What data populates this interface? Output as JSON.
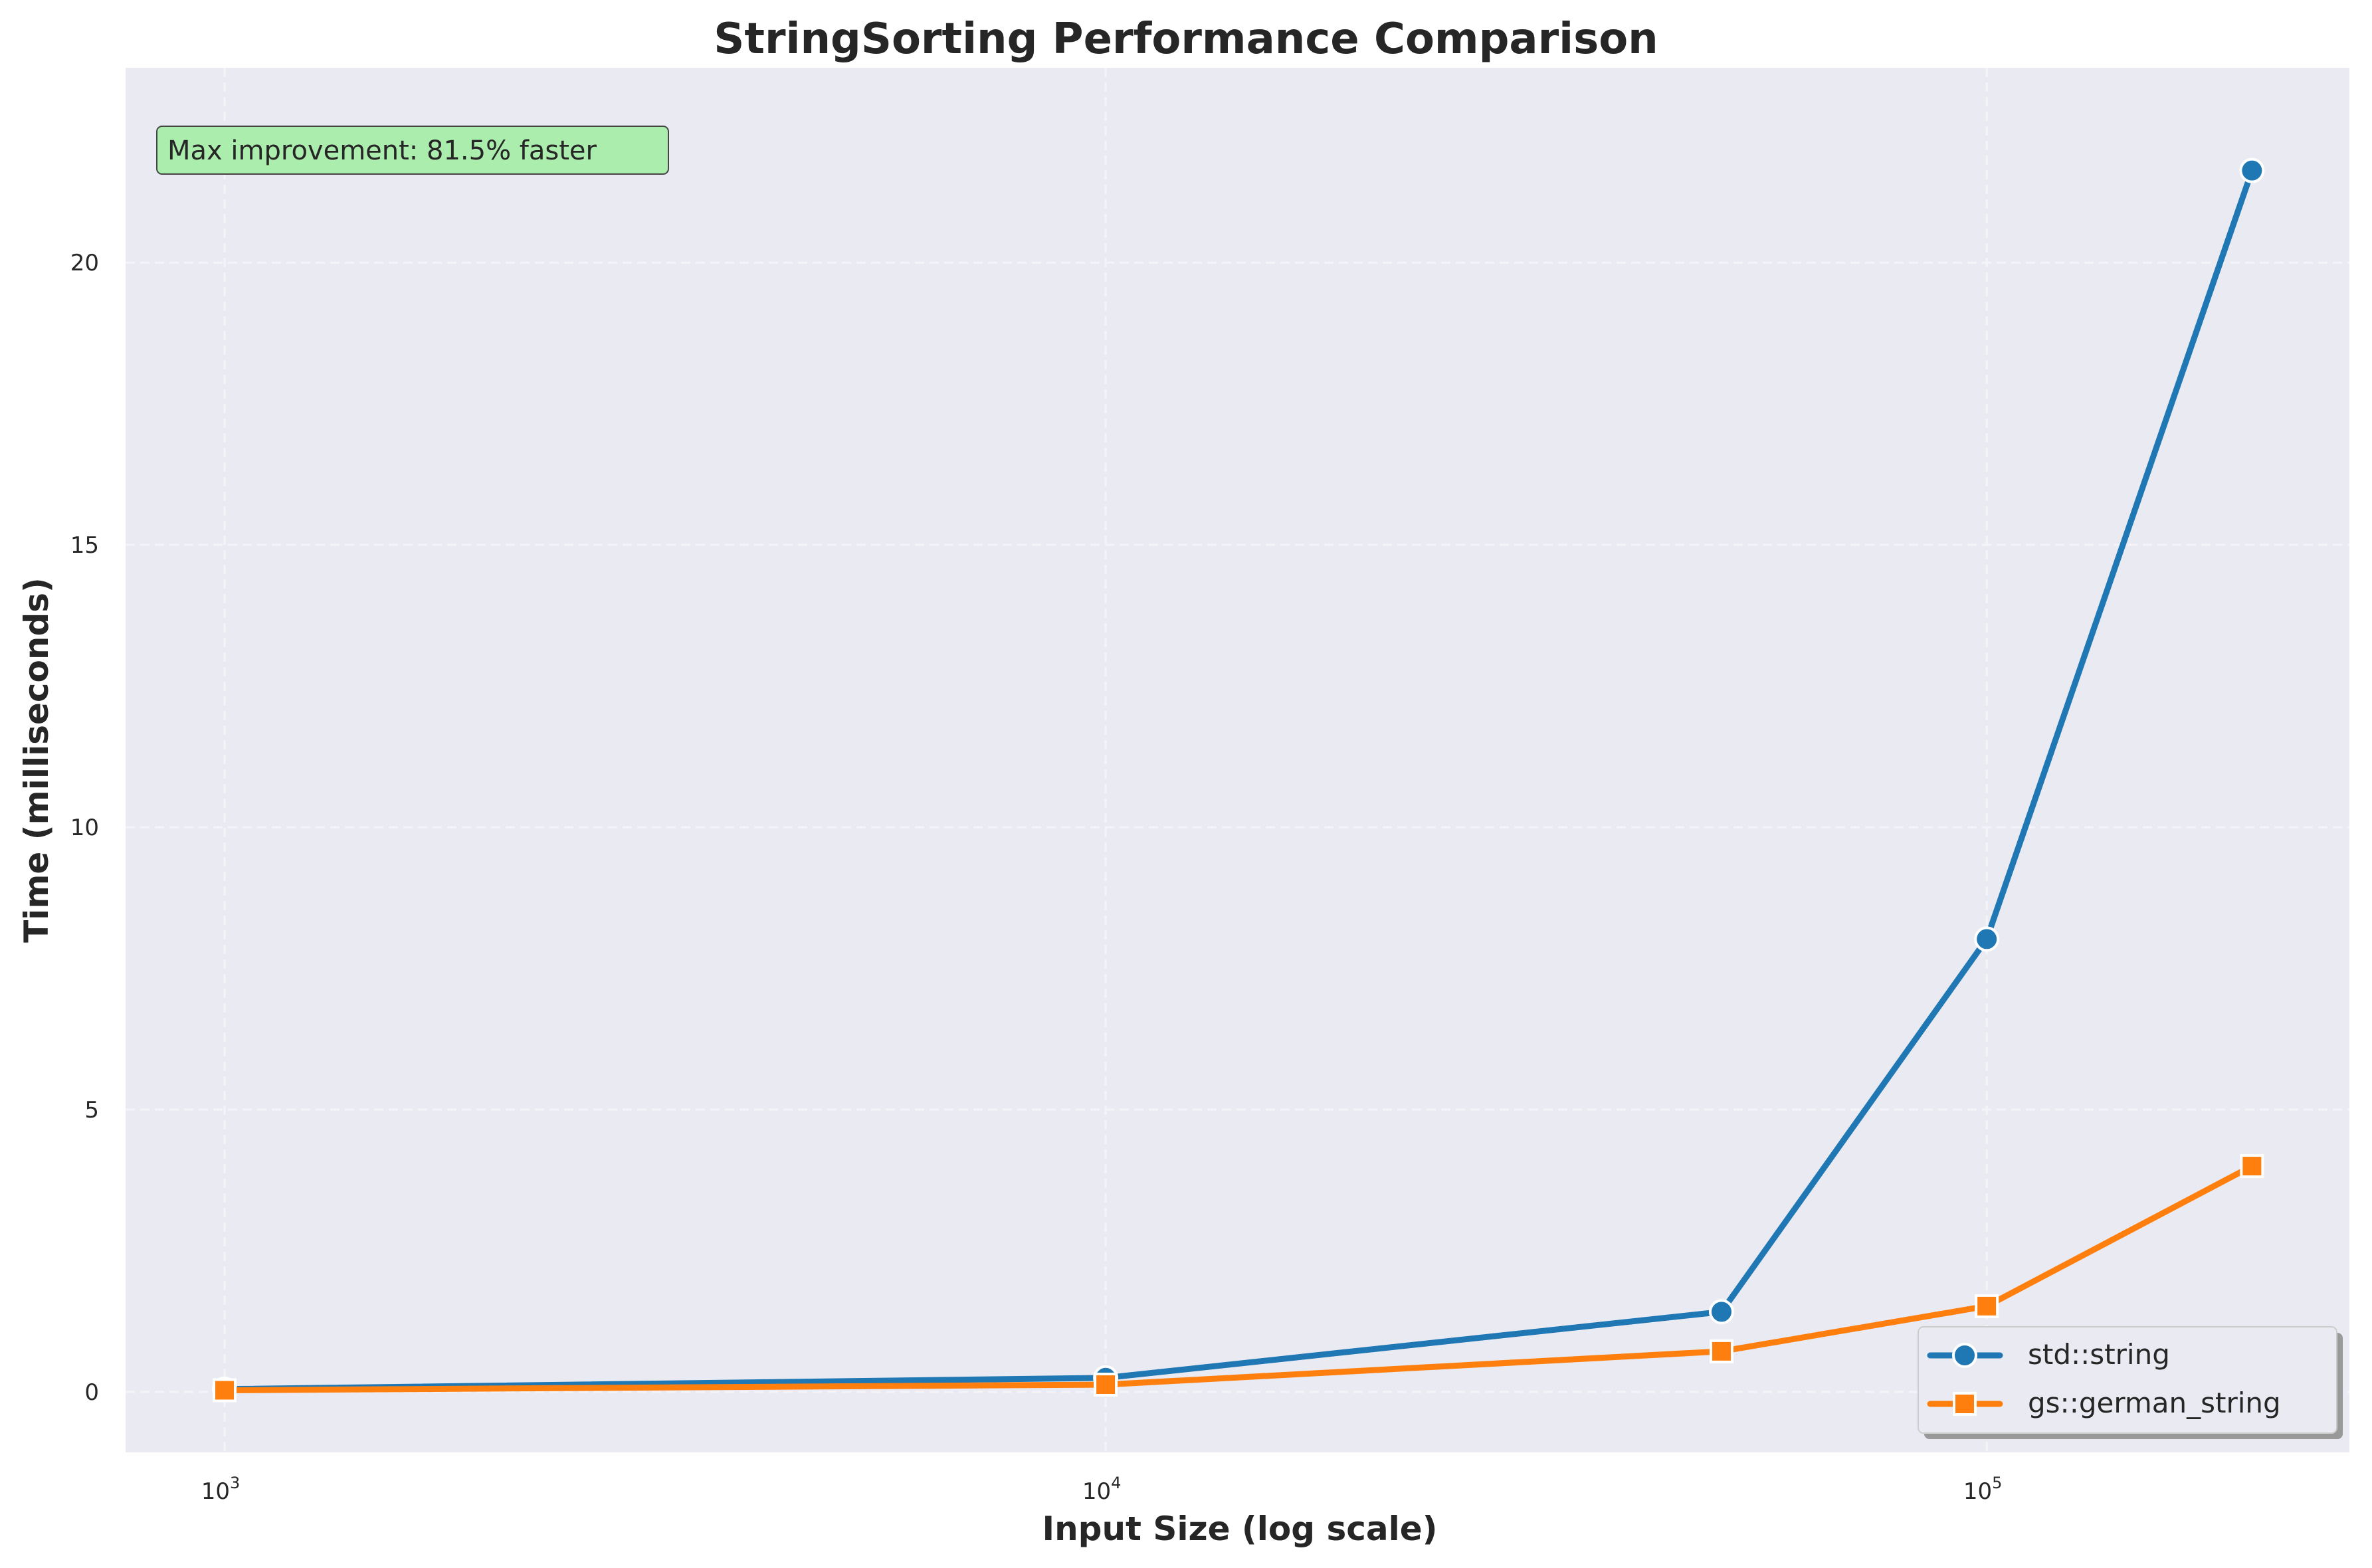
{
  "chart_data": {
    "type": "line",
    "title": "StringSorting Performance Comparison",
    "xlabel": "Input Size (log scale)",
    "ylabel": "Time (milliseconds)",
    "xscale": "log",
    "xlim": [
      772,
      258000
    ],
    "ylim": [
      -1.07,
      23.45
    ],
    "x_ticks": [
      {
        "value": 1000,
        "base": "10",
        "exp": "3"
      },
      {
        "value": 10000,
        "base": "10",
        "exp": "4"
      },
      {
        "value": 100000,
        "base": "10",
        "exp": "5"
      }
    ],
    "y_ticks": [
      0,
      5,
      10,
      15,
      20
    ],
    "grid": true,
    "legend_placement": "lower-right",
    "x": [
      1000,
      10000,
      50000,
      100000,
      200000
    ],
    "series": [
      {
        "name": "std::string",
        "color": "#1f77b4",
        "marker": "circle",
        "values": [
          0.05,
          0.25,
          1.42,
          8.02,
          21.63
        ]
      },
      {
        "name": "gs::german_string",
        "color": "#ff7f0e",
        "marker": "square",
        "values": [
          0.03,
          0.13,
          0.72,
          1.52,
          4.0
        ]
      }
    ],
    "annotation": {
      "text": "Max improvement: 81.5% faster",
      "background": "#abedad"
    },
    "plot_background": "#eaeaf2"
  }
}
